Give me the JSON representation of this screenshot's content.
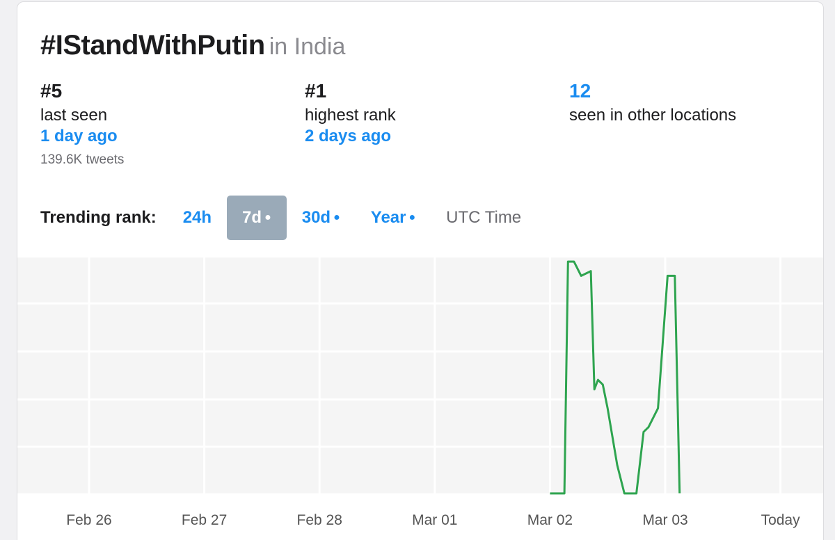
{
  "header": {
    "hashtag": "#IStandWithPutin",
    "location": "in India"
  },
  "stats": {
    "last": {
      "value": "#5",
      "label": "last seen",
      "when": "1 day ago",
      "tweets": "139.6K tweets"
    },
    "highest": {
      "value": "#1",
      "label": "highest rank",
      "when": "2 days ago"
    },
    "other": {
      "value": "12",
      "label": "seen in other locations"
    }
  },
  "tabs": {
    "label": "Trending rank:",
    "items": [
      "24h",
      "7d",
      "30d",
      "Year"
    ],
    "active": "7d",
    "utc": "UTC Time"
  },
  "colors": {
    "line": "#2ea44f",
    "accent": "#1a8cf0",
    "active_tab": "#9aaab8",
    "plot_bg": "#f5f5f5",
    "grid": "#ffffff"
  },
  "chart_data": {
    "type": "line",
    "title": "",
    "xlabel": "",
    "ylabel": "",
    "x_ticks": [
      "Feb 26",
      "Feb 27",
      "Feb 28",
      "Mar 01",
      "Mar 02",
      "Mar 03",
      "Today"
    ],
    "y_direction": "rank 1 at top",
    "ylim": [
      1,
      50
    ],
    "grid": true,
    "series": [
      {
        "x": [
          "Mar 02 00:00",
          "Mar 02 03:00",
          "Mar 02 03:45",
          "Mar 02 05:00",
          "Mar 02 06:30",
          "Mar 02 08:30",
          "Mar 02 09:15",
          "Mar 02 10:00",
          "Mar 02 11:00",
          "Mar 02 12:00",
          "Mar 02 14:00",
          "Mar 02 15:30",
          "Mar 02 18:00",
          "Mar 02 19:30",
          "Mar 02 20:30",
          "Mar 02 22:30",
          "Mar 03 00:30",
          "Mar 03 02:00",
          "Mar 03 03:00"
        ],
        "y": [
          50,
          50,
          1,
          1,
          4,
          3,
          28,
          26,
          27,
          32,
          44,
          50,
          50,
          37,
          36,
          32,
          4,
          4,
          50
        ]
      }
    ]
  }
}
